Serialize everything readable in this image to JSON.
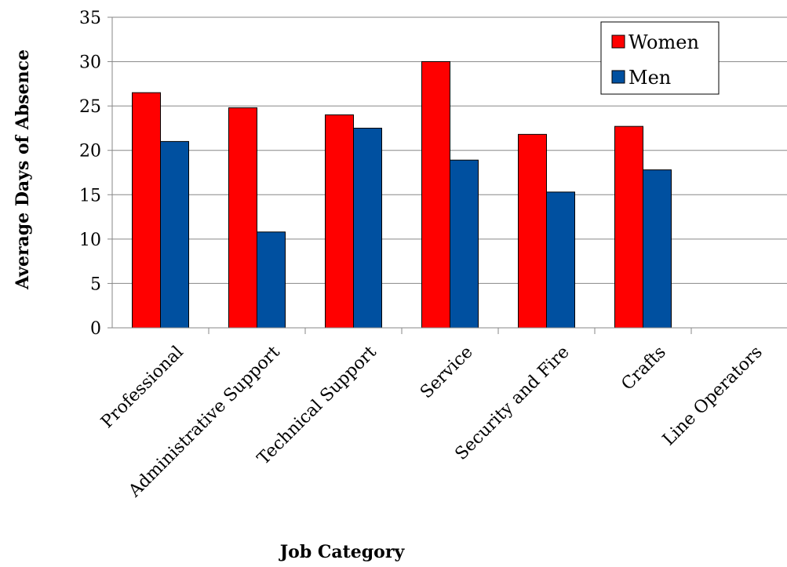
{
  "chart_data": {
    "type": "bar",
    "title": "",
    "xlabel": "Job Category",
    "ylabel": "Average Days of Absence",
    "ylim": [
      0,
      35
    ],
    "yticks": [
      0,
      5,
      10,
      15,
      20,
      25,
      30,
      35
    ],
    "grid": true,
    "legend": "top-right",
    "categories": [
      "Professional",
      "Administrative Support",
      "Technical Support",
      "Service",
      "Security and Fire",
      "Crafts",
      "Line Operators"
    ],
    "series": [
      {
        "name": "Women",
        "color": "#ff0000",
        "values": [
          26.5,
          24.8,
          24.0,
          30.0,
          21.8,
          22.7,
          null
        ]
      },
      {
        "name": "Men",
        "color": "#0050a0",
        "values": [
          21.0,
          10.8,
          22.5,
          18.9,
          15.3,
          17.8,
          null
        ]
      }
    ]
  }
}
